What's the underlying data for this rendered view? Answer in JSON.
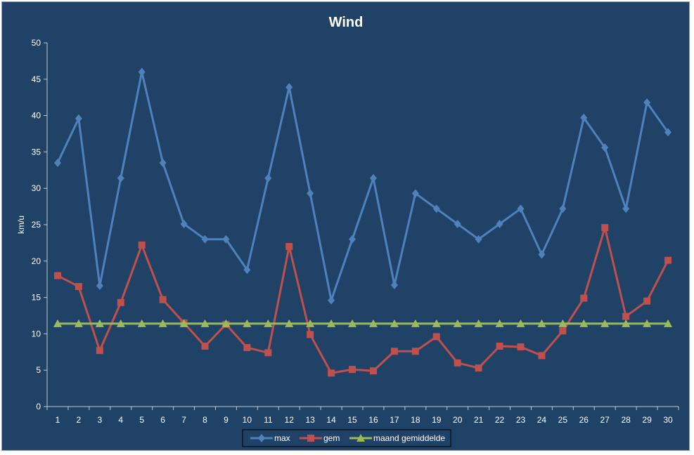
{
  "chart_data": {
    "type": "line",
    "title": "Wind",
    "xlabel": "",
    "ylabel": "km/u",
    "ylim": [
      0,
      50
    ],
    "yticks": [
      0,
      5,
      10,
      15,
      20,
      25,
      30,
      35,
      40,
      45,
      50
    ],
    "x": [
      1,
      2,
      3,
      4,
      5,
      6,
      7,
      8,
      9,
      10,
      11,
      12,
      13,
      14,
      15,
      16,
      17,
      18,
      19,
      20,
      21,
      22,
      23,
      24,
      25,
      26,
      27,
      28,
      29,
      30
    ],
    "x_tick_labels": [
      "1",
      "2",
      "3",
      "4",
      "5",
      "6",
      "7",
      "8",
      "9",
      "10",
      "11",
      "12",
      "13",
      "14",
      "15",
      "16",
      "17",
      "18",
      "19",
      "20",
      "21",
      "22",
      "23",
      "24",
      "25",
      "26",
      "27",
      "28",
      "29",
      "30"
    ],
    "grid": false,
    "legend_position": "bottom",
    "series": [
      {
        "name": "max",
        "color": "#4f81bd",
        "marker": "diamond",
        "values": [
          33.5,
          39.6,
          16.6,
          31.4,
          46.0,
          33.5,
          25.1,
          23.0,
          23.0,
          18.8,
          31.4,
          43.9,
          29.3,
          14.6,
          23.0,
          31.4,
          16.7,
          29.3,
          27.2,
          25.1,
          23.0,
          25.1,
          27.2,
          20.9,
          27.2,
          39.7,
          35.6,
          27.2,
          41.8,
          37.7
        ]
      },
      {
        "name": "gem",
        "color": "#c0504d",
        "marker": "square",
        "values": [
          18.0,
          16.5,
          7.7,
          14.3,
          22.2,
          14.7,
          11.5,
          8.3,
          11.3,
          8.1,
          7.4,
          22.0,
          9.9,
          4.6,
          5.1,
          4.9,
          7.6,
          7.6,
          9.6,
          6.0,
          5.3,
          8.3,
          8.2,
          7.0,
          10.4,
          14.9,
          24.6,
          12.4,
          14.5,
          20.1
        ]
      },
      {
        "name": "maand gemiddelde",
        "color": "#9bbb59",
        "marker": "triangle",
        "values": [
          11.4,
          11.4,
          11.4,
          11.4,
          11.4,
          11.4,
          11.4,
          11.4,
          11.4,
          11.4,
          11.4,
          11.4,
          11.4,
          11.4,
          11.4,
          11.4,
          11.4,
          11.4,
          11.4,
          11.4,
          11.4,
          11.4,
          11.4,
          11.4,
          11.4,
          11.4,
          11.4,
          11.4,
          11.4,
          11.4
        ]
      }
    ],
    "colors": {
      "background": "#1f4266",
      "text": "#ffffff",
      "axis": "#c0c8d0"
    }
  }
}
